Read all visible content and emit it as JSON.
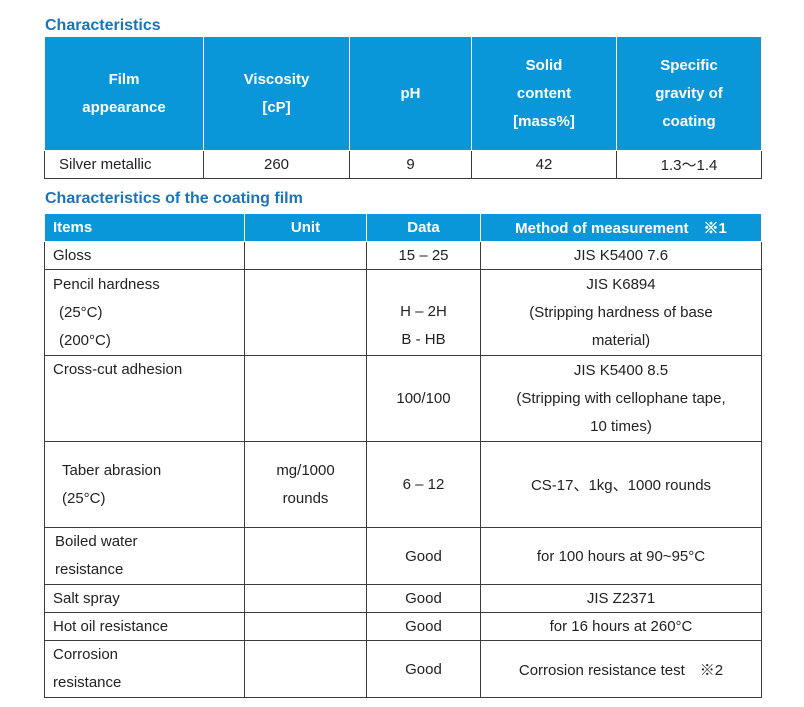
{
  "section1": {
    "title": "Characteristics",
    "headers": {
      "film": [
        "Film",
        "appearance"
      ],
      "viscosity": [
        "Viscosity",
        "[cP]"
      ],
      "ph": [
        "pH"
      ],
      "solid": [
        "Solid",
        "content",
        "[mass%]"
      ],
      "gravity": [
        "Specific",
        "gravity of",
        "coating"
      ]
    },
    "row": {
      "film": "Silver metallic",
      "viscosity": "260",
      "ph": "9",
      "solid": "42",
      "gravity": "1.3〜1.4"
    }
  },
  "section2": {
    "title": "Characteristics of the coating film",
    "headers": {
      "items": "Items",
      "unit": "Unit",
      "data": "Data",
      "method": "Method of measurement　※1"
    },
    "rows": {
      "gloss": {
        "item": [
          "Gloss"
        ],
        "unit": [],
        "data": [
          "15 – 25"
        ],
        "method": [
          "JIS K5400 7.6"
        ]
      },
      "pencil": {
        "item": [
          "Pencil hardness",
          "(25°C)",
          "(200°C)"
        ],
        "unit": [],
        "data": [
          "H – 2H",
          "B - HB"
        ],
        "method": [
          "JIS K6894",
          "(Stripping hardness of base",
          "material)"
        ]
      },
      "crosscut": {
        "item": [
          "Cross-cut adhesion"
        ],
        "unit": [],
        "data": [
          "100/100"
        ],
        "method": [
          "JIS K5400 8.5",
          "(Stripping with cellophane tape,",
          "10 times)"
        ]
      },
      "taber": {
        "item": [
          "Taber abrasion",
          "(25°C)"
        ],
        "unit": [
          "mg/1000",
          "rounds"
        ],
        "data": [
          "6 – 12"
        ],
        "method": [
          "CS-17、1kg、1000 rounds"
        ]
      },
      "boiled": {
        "item": [
          "Boiled water",
          "resistance"
        ],
        "unit": [],
        "data": [
          "Good"
        ],
        "method": [
          "for 100 hours at 90~95°C"
        ]
      },
      "salt": {
        "item": [
          "Salt spray"
        ],
        "unit": [],
        "data": [
          "Good"
        ],
        "method": [
          "JIS Z2371"
        ]
      },
      "hotoil": {
        "item": [
          "Hot oil resistance"
        ],
        "unit": [],
        "data": [
          "Good"
        ],
        "method": [
          "for 16 hours at 260°C"
        ]
      },
      "corrosion": {
        "item": [
          "Corrosion",
          "resistance"
        ],
        "unit": [],
        "data": [
          "Good"
        ],
        "method": [
          "Corrosion resistance test　※2"
        ]
      }
    }
  }
}
